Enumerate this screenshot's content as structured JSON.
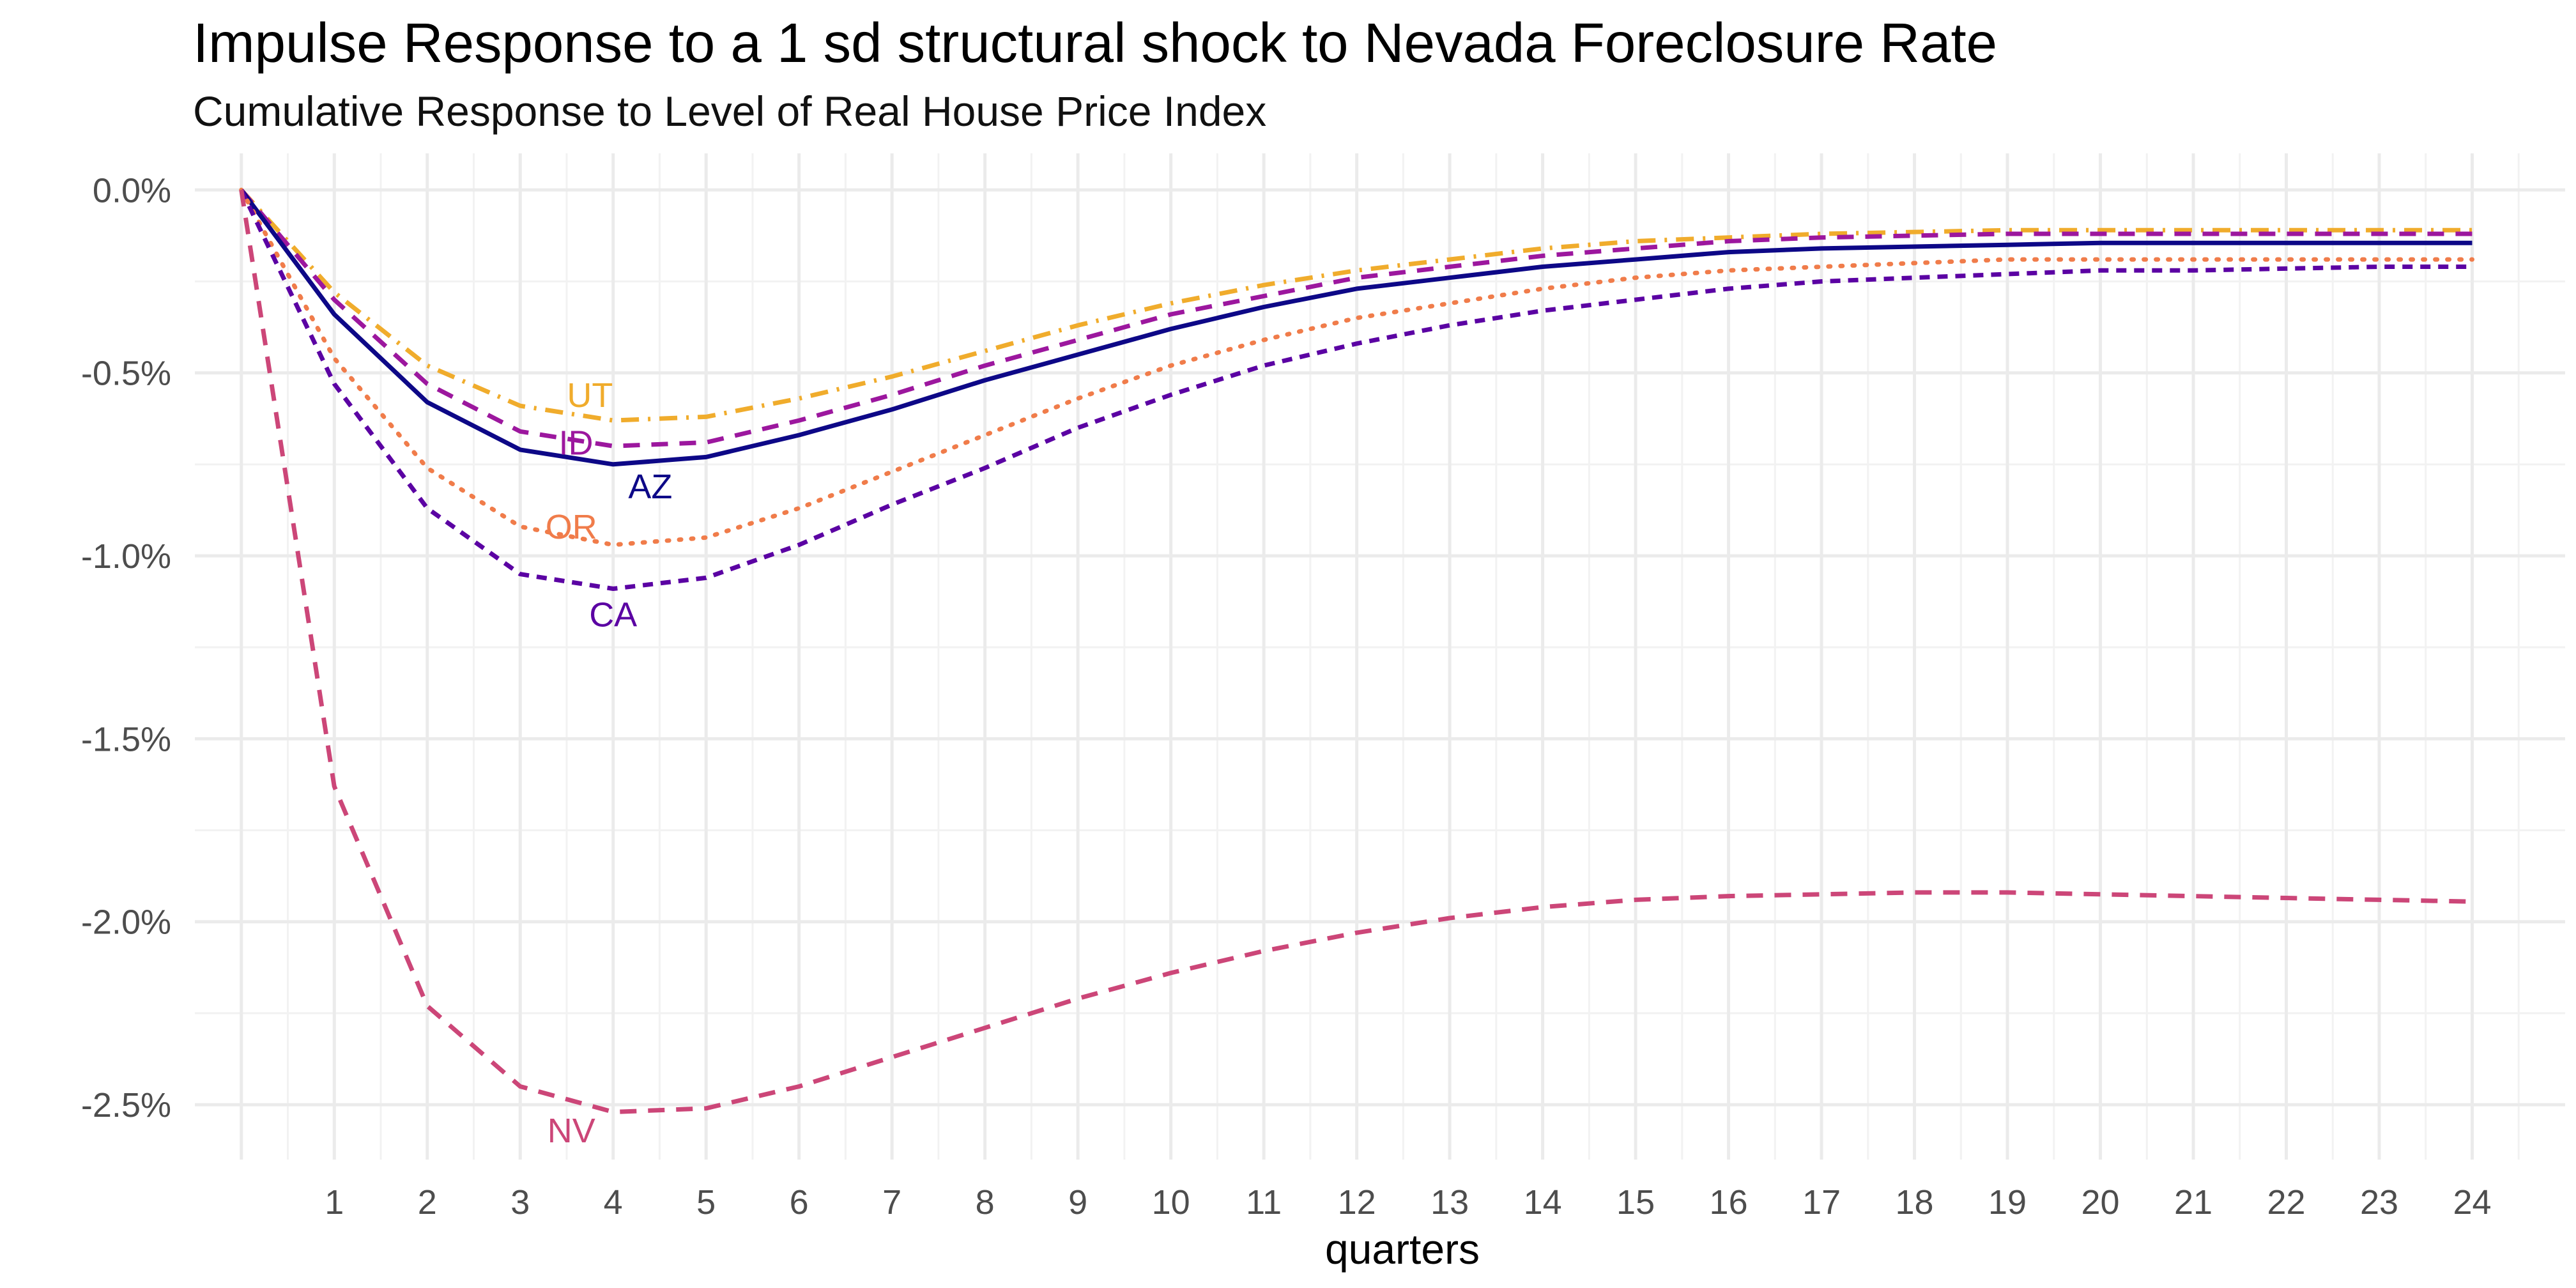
{
  "chart_data": {
    "type": "line",
    "title": "Impulse Response to a 1 sd structural shock to Nevada Foreclosure Rate",
    "subtitle": "Cumulative Response to Level of Real House Price Index",
    "xlabel": "quarters",
    "ylabel": "",
    "xlim": [
      -0.5,
      25
    ],
    "ylim": [
      -2.65,
      0.1
    ],
    "x_ticks": [
      1,
      2,
      3,
      4,
      5,
      6,
      7,
      8,
      9,
      10,
      11,
      12,
      13,
      14,
      15,
      16,
      17,
      18,
      19,
      20,
      21,
      22,
      23,
      24
    ],
    "y_ticks": [
      0,
      -0.5,
      -1.0,
      -1.5,
      -2.0,
      -2.5
    ],
    "y_tick_labels": [
      "0.0%",
      "-0.5%",
      "-1.0%",
      "-1.5%",
      "-2.0%",
      "-2.5%"
    ],
    "grid": true,
    "legend": "none",
    "x": [
      0,
      1,
      2,
      3,
      4,
      5,
      6,
      7,
      8,
      9,
      10,
      11,
      12,
      13,
      14,
      15,
      16,
      17,
      18,
      19,
      20,
      21,
      22,
      23,
      24
    ],
    "series": [
      {
        "name": "UT",
        "color": "#F0AC2C",
        "dash": "dashdot",
        "label_at": [
          3.75,
          -0.56
        ],
        "values": [
          0,
          -0.28,
          -0.48,
          -0.59,
          -0.63,
          -0.62,
          -0.57,
          -0.51,
          -0.44,
          -0.37,
          -0.31,
          -0.26,
          -0.22,
          -0.19,
          -0.16,
          -0.14,
          -0.13,
          -0.12,
          -0.115,
          -0.11,
          -0.11,
          -0.11,
          -0.11,
          -0.11,
          -0.11
        ]
      },
      {
        "name": "ID",
        "color": "#9C179E",
        "dash": "dashed",
        "label_at": [
          3.6,
          -0.69
        ],
        "values": [
          0,
          -0.3,
          -0.53,
          -0.66,
          -0.7,
          -0.69,
          -0.63,
          -0.56,
          -0.48,
          -0.41,
          -0.34,
          -0.29,
          -0.24,
          -0.21,
          -0.18,
          -0.16,
          -0.14,
          -0.13,
          -0.125,
          -0.12,
          -0.12,
          -0.12,
          -0.12,
          -0.12,
          -0.12
        ]
      },
      {
        "name": "AZ",
        "color": "#0D0887",
        "dash": "solid",
        "label_at": [
          4.4,
          -0.81
        ],
        "values": [
          0,
          -0.34,
          -0.58,
          -0.71,
          -0.75,
          -0.73,
          -0.67,
          -0.6,
          -0.52,
          -0.45,
          -0.38,
          -0.32,
          -0.27,
          -0.24,
          -0.21,
          -0.19,
          -0.17,
          -0.16,
          -0.155,
          -0.15,
          -0.145,
          -0.145,
          -0.145,
          -0.145,
          -0.145
        ]
      },
      {
        "name": "OR",
        "color": "#F07C4A",
        "dash": "dotted",
        "label_at": [
          3.55,
          -0.92
        ],
        "values": [
          0,
          -0.46,
          -0.76,
          -0.92,
          -0.97,
          -0.95,
          -0.87,
          -0.77,
          -0.67,
          -0.57,
          -0.48,
          -0.41,
          -0.35,
          -0.31,
          -0.27,
          -0.24,
          -0.22,
          -0.21,
          -0.2,
          -0.19,
          -0.19,
          -0.19,
          -0.19,
          -0.19,
          -0.19
        ]
      },
      {
        "name": "CA",
        "color": "#5B02A3",
        "dash": "shortdash",
        "label_at": [
          4.0,
          -1.16
        ],
        "values": [
          0,
          -0.53,
          -0.87,
          -1.05,
          -1.09,
          -1.06,
          -0.97,
          -0.86,
          -0.76,
          -0.65,
          -0.56,
          -0.48,
          -0.42,
          -0.37,
          -0.33,
          -0.3,
          -0.27,
          -0.25,
          -0.24,
          -0.23,
          -0.22,
          -0.22,
          -0.215,
          -0.21,
          -0.21
        ]
      },
      {
        "name": "NV",
        "color": "#CC4678",
        "dash": "dashed",
        "label_at": [
          3.55,
          -2.57
        ],
        "values": [
          0,
          -1.63,
          -2.23,
          -2.45,
          -2.52,
          -2.51,
          -2.45,
          -2.37,
          -2.29,
          -2.21,
          -2.14,
          -2.08,
          -2.03,
          -1.99,
          -1.96,
          -1.94,
          -1.93,
          -1.925,
          -1.92,
          -1.92,
          -1.925,
          -1.93,
          -1.935,
          -1.94,
          -1.945
        ]
      }
    ]
  }
}
